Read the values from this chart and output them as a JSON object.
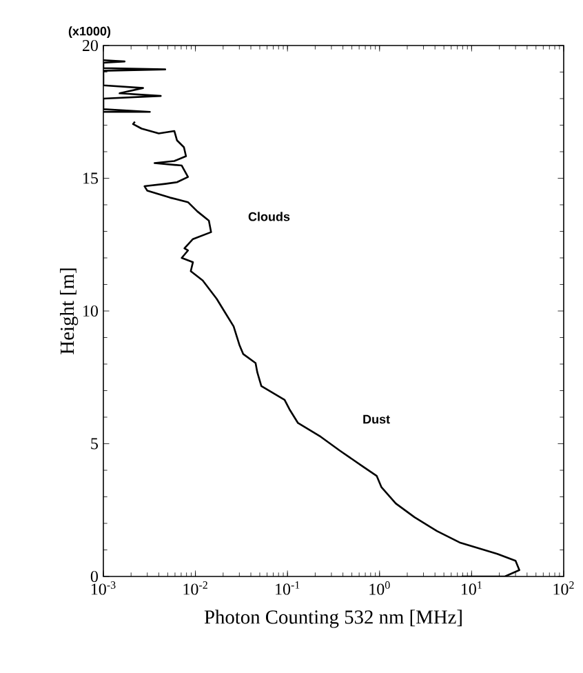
{
  "chart_data": {
    "type": "line",
    "xlabel": "Photon Counting 532 nm [MHz]",
    "ylabel": "Height [m]",
    "log": "x",
    "xlim": [
      0.001,
      100
    ],
    "ylim": [
      0,
      20
    ],
    "xticks": [
      {
        "value": 0.001,
        "label": "10$^{-3}$"
      },
      {
        "value": 0.01,
        "label": "10$^{-2}$"
      },
      {
        "value": 0.1,
        "label": "10$^{-1}$"
      },
      {
        "value": 1,
        "label": "10$^{0}$"
      },
      {
        "value": 10,
        "label": "10$^{1}$"
      },
      {
        "value": 100,
        "label": "10$^{2}$"
      }
    ],
    "yticks": [
      0,
      5,
      10,
      15,
      20
    ],
    "grid": false,
    "marker": "none",
    "line_style": "solid",
    "annotations": [
      "(x1000)",
      "Clouds",
      "Dust"
    ],
    "series": [
      {
        "color": "#000000",
        "x": [
          7.8,
          23,
          33,
          30,
          19,
          7.4,
          4.2,
          2.4,
          1.5,
          1.05,
          0.93,
          0.66,
          0.37,
          0.23,
          0.13,
          0.105,
          0.093,
          0.052,
          0.047,
          0.045,
          0.033,
          0.03,
          0.026,
          0.021,
          0.017,
          0.012,
          0.0089,
          0.0094,
          0.0071,
          0.0083,
          0.0076,
          0.0094,
          0.0148,
          0.014,
          0.0105,
          0.0083,
          0.0053,
          0.003,
          0.0028,
          0.0047,
          0.0063,
          0.0083,
          0.0071,
          0.0036,
          0.0059,
          0.0079,
          0.0075,
          0.0063,
          0.0059,
          0.004,
          0.0026,
          0.0021,
          0.0022,
          null,
          0.001,
          0.0032,
          0.001,
          0.001,
          0.0042,
          0.0015,
          0.0027,
          0.001,
          0.001,
          0.0047,
          0.001,
          0.001,
          0.0017,
          0.001
        ],
        "values": [
          0,
          0,
          0.24,
          0.59,
          0.85,
          1.28,
          1.71,
          2.23,
          2.75,
          3.36,
          3.79,
          4.14,
          4.74,
          5.26,
          5.78,
          6.3,
          6.65,
          7.17,
          7.69,
          8.04,
          8.38,
          8.73,
          9.42,
          9.94,
          10.46,
          11.15,
          11.5,
          11.84,
          12.0,
          12.28,
          12.36,
          12.71,
          12.97,
          13.4,
          13.75,
          14.1,
          14.27,
          14.53,
          14.7,
          14.79,
          14.85,
          15.05,
          15.48,
          15.57,
          15.65,
          15.83,
          16.17,
          16.43,
          16.78,
          16.69,
          16.87,
          17.04,
          17.13,
          null,
          17.5,
          17.5,
          17.6,
          18.0,
          18.1,
          18.2,
          18.4,
          18.5,
          19.05,
          19.1,
          19.15,
          19.35,
          19.4,
          19.45
        ]
      }
    ]
  }
}
